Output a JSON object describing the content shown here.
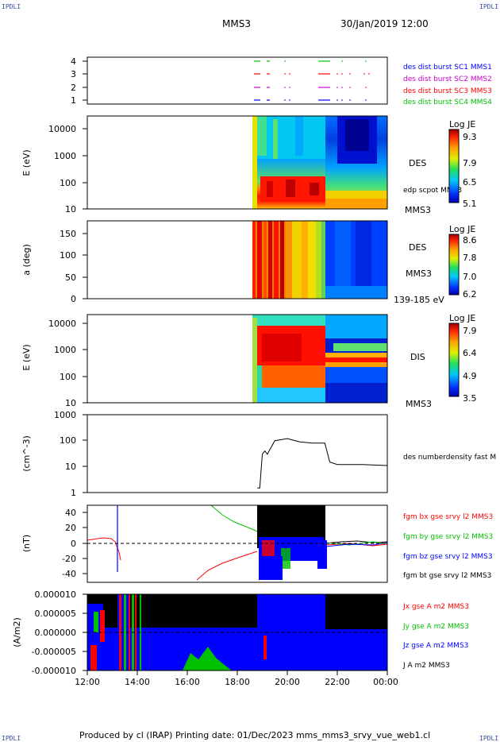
{
  "page": {
    "corner_tl": "IPDLI",
    "corner_tr": "IPDLI",
    "corner_bl": "IPDLI",
    "corner_br": "IPDLI",
    "title": "MMS3",
    "datetime": "30/Jan/2019 12:00",
    "footer": "Produced by cl (IRAP)   Printing date: 01/Dec/2023   mms_mms3_srvy_vue_web1.cl"
  },
  "colors": {
    "blue": "#0000ff",
    "green": "#00c000",
    "red": "#ff0000",
    "magenta": "#d000d0",
    "black": "#000000"
  },
  "chart_data": [
    {
      "id": "panel1",
      "type": "scatter",
      "yticks": [
        "4",
        "3",
        "2",
        "1"
      ],
      "legend": [
        {
          "name": "des dist burst SC1 MMS1",
          "color": "#0000ff"
        },
        {
          "name": "des dist burst SC2 MMS2",
          "color": "#d000d0"
        },
        {
          "name": "des dist burst SC3 MMS3",
          "color": "#ff0000"
        },
        {
          "name": "des dist burst SC4 MMS4",
          "color": "#00c000"
        }
      ]
    },
    {
      "id": "panel2",
      "type": "heatmap",
      "ylabel": "E (eV)",
      "yticks": [
        "10000",
        "1000",
        "100",
        "10"
      ],
      "ylog": true,
      "ylim": [
        10,
        30000
      ],
      "label": "DES",
      "sublabel": "edp scpot MMS3",
      "sc": "MMS3",
      "colorbar": {
        "title": "Log JE",
        "ticks": [
          "9.3",
          "7.9",
          "6.5",
          "5.1"
        ],
        "range": [
          5.1,
          9.3
        ]
      }
    },
    {
      "id": "panel3",
      "type": "heatmap",
      "ylabel": "a (deg)",
      "yticks": [
        "150",
        "100",
        "50",
        "0"
      ],
      "ylim": [
        0,
        180
      ],
      "label": "DES",
      "sc": "MMS3",
      "energy_range": "139-185 eV",
      "colorbar": {
        "title": "Log JE",
        "ticks": [
          "8.6",
          "7.8",
          "7.0",
          "6.2"
        ],
        "range": [
          6.2,
          8.6
        ]
      }
    },
    {
      "id": "panel4",
      "type": "heatmap",
      "ylabel": "E (eV)",
      "yticks": [
        "10000",
        "1000",
        "100",
        "10"
      ],
      "ylog": true,
      "ylim": [
        10,
        30000
      ],
      "label": "DIS",
      "sc": "MMS3",
      "colorbar": {
        "title": "Log JE",
        "ticks": [
          "7.9",
          "6.4",
          "4.9",
          "3.5"
        ],
        "range": [
          3.5,
          7.9
        ]
      }
    },
    {
      "id": "panel5",
      "type": "line",
      "ylabel": "(cm^-3)",
      "yticks": [
        "1000",
        "100",
        "10",
        "1"
      ],
      "ylog": true,
      "ylim": [
        1,
        1000
      ],
      "legend": [
        {
          "name": "des numberdensity fast M",
          "color": "#000000"
        }
      ],
      "series": [
        {
          "x_hours": [
            18.8,
            18.9,
            19.0,
            19.1,
            19.2,
            19.5,
            20.0,
            20.5,
            21.0,
            21.5,
            21.7,
            22.0,
            23.0,
            24.0
          ],
          "values": [
            1.5,
            1.5,
            30,
            40,
            30,
            100,
            120,
            90,
            80,
            80,
            15,
            12,
            12,
            11
          ]
        }
      ]
    },
    {
      "id": "panel6",
      "type": "line",
      "ylabel": "(nT)",
      "yticks": [
        "40",
        "20",
        "0",
        "-20",
        "-40"
      ],
      "ylim": [
        -50,
        50
      ],
      "legend": [
        {
          "name": "fgm bx gse srvy l2 MMS3",
          "color": "#ff0000"
        },
        {
          "name": "fgm by gse srvy l2 MMS3",
          "color": "#00c000"
        },
        {
          "name": "fgm bz gse srvy l2 MMS3",
          "color": "#0000ff"
        },
        {
          "name": "fgm bt gse srvy l2 MMS3",
          "color": "#000000"
        }
      ]
    },
    {
      "id": "panel7",
      "type": "area",
      "ylabel": "(A/m2)",
      "yticks": [
        "0.000010",
        "0.000005",
        "0.000000",
        "-0.000005",
        "-0.000010"
      ],
      "ylim": [
        -1e-05,
        1e-05
      ],
      "legend": [
        {
          "name": "Jx gse A m2 MMS3",
          "color": "#ff0000"
        },
        {
          "name": "Jy gse A m2 MMS3",
          "color": "#00c000"
        },
        {
          "name": "Jz gse A m2 MMS3",
          "color": "#0000ff"
        },
        {
          "name": "J A m2 MMS3",
          "color": "#000000"
        }
      ]
    }
  ],
  "xaxis": {
    "ticks": [
      "12:00",
      "14:00",
      "16:00",
      "18:00",
      "20:00",
      "22:00",
      "00:00"
    ],
    "range_hours": [
      12,
      24
    ]
  }
}
